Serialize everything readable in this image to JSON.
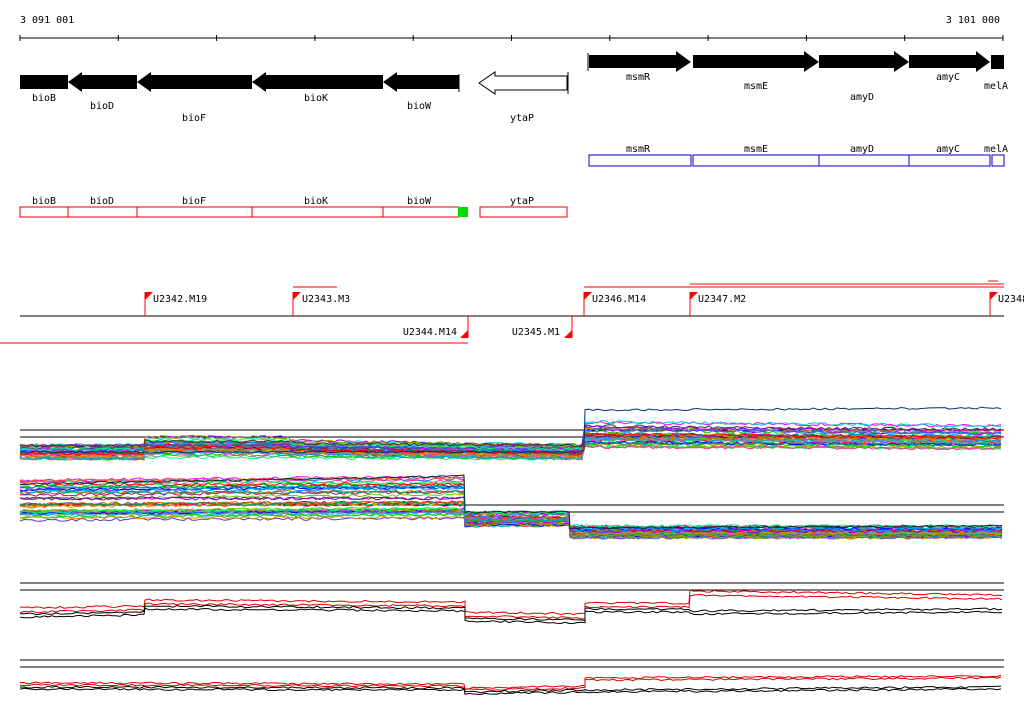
{
  "ruler": {
    "start_label": "3 091 001",
    "end_label": "3 101 000",
    "start": 3091001,
    "end": 3101000
  },
  "colors": {
    "forward_gene": "#000000",
    "reverse_outline": "#000000",
    "blue_track": "#0000cc",
    "red_track": "#dd0000",
    "marker": "#00dd00",
    "feature_red": "#ff0000"
  },
  "genes_arrows": [
    {
      "name": "bioB",
      "strand": "-"
    },
    {
      "name": "bioD",
      "strand": "-"
    },
    {
      "name": "bioF",
      "strand": "-"
    },
    {
      "name": "bioK",
      "strand": "-"
    },
    {
      "name": "bioW",
      "strand": "-"
    },
    {
      "name": "ytaP",
      "strand": "-",
      "style": "outline"
    },
    {
      "name": "msmR",
      "strand": "+"
    },
    {
      "name": "msmE",
      "strand": "+"
    },
    {
      "name": "amyD",
      "strand": "+"
    },
    {
      "name": "amyC",
      "strand": "+"
    },
    {
      "name": "melA",
      "strand": "+"
    }
  ],
  "blue_boxes": [
    "msmR",
    "msmE",
    "amyD",
    "amyC",
    "melA"
  ],
  "red_boxes": [
    "bioB",
    "bioD",
    "bioF",
    "bioK",
    "bioW",
    "ytaP"
  ],
  "features": [
    {
      "name": "U2342.M19",
      "strand": "+"
    },
    {
      "name": "U2343.M3",
      "strand": "+"
    },
    {
      "name": "U2346.M14",
      "strand": "+"
    },
    {
      "name": "U2347.M2",
      "strand": "+"
    },
    {
      "name": "U2348",
      "strand": "+"
    },
    {
      "name": "U2344.M14",
      "strand": "-"
    },
    {
      "name": "U2345.M1",
      "strand": "-"
    }
  ]
}
